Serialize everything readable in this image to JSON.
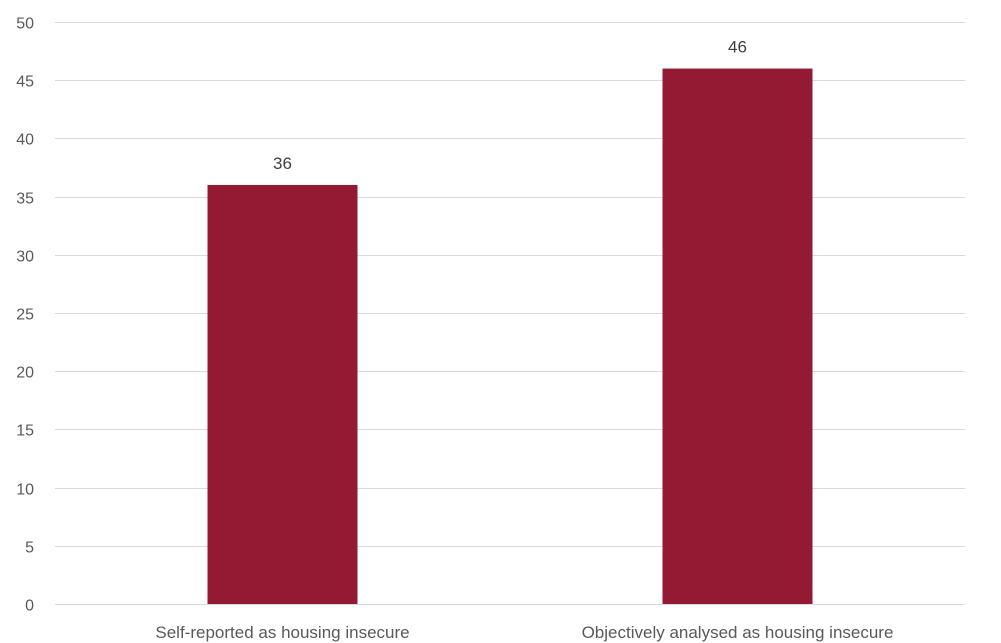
{
  "chart_data": {
    "type": "bar",
    "categories": [
      "Self-reported as housing insecure",
      "Objectively analysed as housing insecure"
    ],
    "values": [
      36,
      46
    ],
    "data_labels": [
      "36",
      "46"
    ],
    "title": "",
    "xlabel": "",
    "ylabel": "",
    "ylim": [
      0,
      50
    ],
    "yticks": [
      0,
      5,
      10,
      15,
      20,
      25,
      30,
      35,
      40,
      45,
      50
    ],
    "grid": true,
    "legend": "none",
    "colors": {
      "bar": "#941A34",
      "grid": "#D9D9D9",
      "axis_text": "#595959",
      "label_text": "#404040"
    }
  }
}
